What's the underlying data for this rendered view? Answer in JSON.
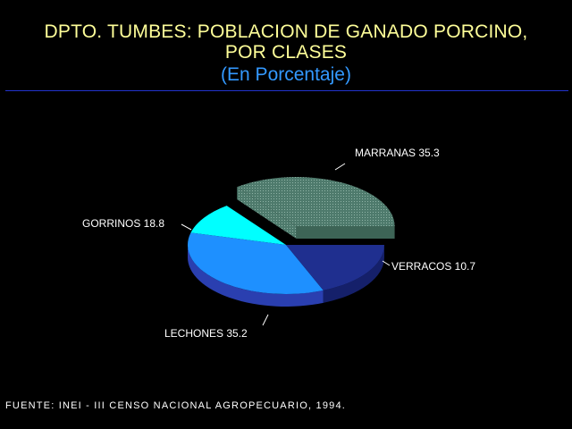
{
  "header": {
    "title_line1": "DPTO. TUMBES: POBLACION DE GANADO PORCINO,",
    "title_line2": "POR CLASES",
    "subtitle": "(En Porcentaje)"
  },
  "footer": {
    "source": "FUENTE: INEI - III CENSO NACIONAL AGROPECUARIO, 1994."
  },
  "chart_data": {
    "type": "pie",
    "title": "DPTO. TUMBES: POBLACION DE GANADO PORCINO, POR CLASES",
    "subtitle": "(En Porcentaje)",
    "slices": [
      {
        "label": "MARRANAS",
        "value": 35.3,
        "display": "MARRANAS  35.3",
        "color": "#5f8f80",
        "side": "#3d6456",
        "exploded": true
      },
      {
        "label": "VERRACOS",
        "value": 10.7,
        "display": "VERRACOS  10.7",
        "color": "#00ffff",
        "side": "#4aa38f",
        "exploded": false
      },
      {
        "label": "LECHONES",
        "value": 35.2,
        "display": "LECHONES  35.2",
        "color": "#1e90ff",
        "side": "#2a3fb0",
        "exploded": false
      },
      {
        "label": "GORRINOS",
        "value": 18.8,
        "display": "GORRINOS  18.8",
        "color": "#1f2f8f",
        "side": "#15206a",
        "exploded": false
      }
    ],
    "style": "3d-exploded",
    "legend": "none (direct labels)"
  }
}
